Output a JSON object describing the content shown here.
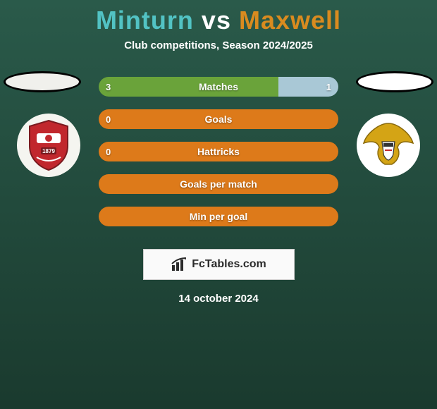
{
  "header": {
    "player1": "Minturn",
    "vs": "vs",
    "player2": "Maxwell",
    "player1_color": "#52c3c4",
    "vs_color": "#ffffff",
    "player2_color": "#d98b1f",
    "subtitle": "Club competitions, Season 2024/2025"
  },
  "left_team": {
    "ellipse_fill": "#f0f0ec",
    "crest_primary": "#c1272d",
    "crest_secondary": "#ffffff",
    "crest_text": "1879"
  },
  "right_team": {
    "ellipse_fill": "#ffffff",
    "crest_primary": "#d4a415",
    "crest_secondary": "#ffffff"
  },
  "bars": [
    {
      "label": "Matches",
      "left_val": "3",
      "right_val": "1",
      "left_pct": 75,
      "right_pct": 25,
      "left_color": "#6aa33a",
      "right_color": "#a9c8d6"
    },
    {
      "label": "Goals",
      "left_val": "0",
      "right_val": "",
      "left_pct": 100,
      "right_pct": 0,
      "left_color": "#dd7a1a",
      "right_color": "#dd7a1a"
    },
    {
      "label": "Hattricks",
      "left_val": "0",
      "right_val": "",
      "left_pct": 100,
      "right_pct": 0,
      "left_color": "#dd7a1a",
      "right_color": "#dd7a1a"
    },
    {
      "label": "Goals per match",
      "left_val": "",
      "right_val": "",
      "left_pct": 100,
      "right_pct": 0,
      "left_color": "#dd7a1a",
      "right_color": "#dd7a1a"
    },
    {
      "label": "Min per goal",
      "left_val": "",
      "right_val": "",
      "left_pct": 100,
      "right_pct": 0,
      "left_color": "#dd7a1a",
      "right_color": "#dd7a1a"
    }
  ],
  "branding": {
    "text": "FcTables.com",
    "icon_color": "#2b2b2b"
  },
  "date": "14 october 2024"
}
